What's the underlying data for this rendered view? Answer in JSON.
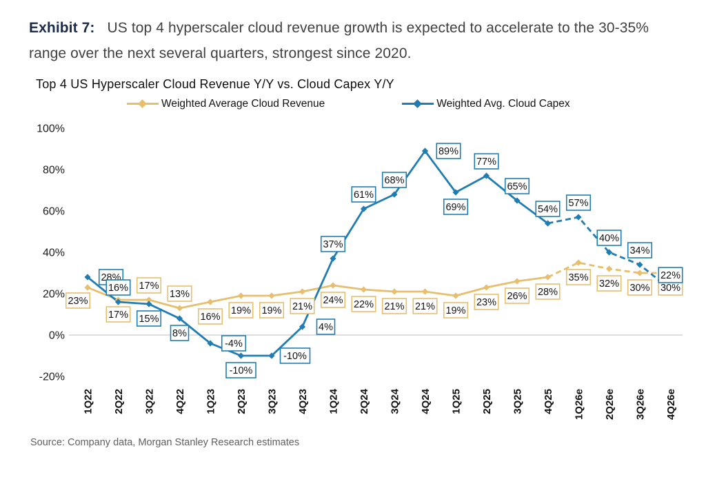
{
  "exhibit": {
    "label": "Exhibit 7:",
    "text": "US top 4 hyperscaler cloud revenue growth is expected to accelerate to the 30-35% range over the next several quarters, strongest since 2020."
  },
  "chart_data": {
    "type": "line",
    "title": "Top 4 US Hyperscaler Cloud Revenue Y/Y vs. Cloud Capex Y/Y",
    "xlabel": "",
    "ylabel": "",
    "categories": [
      "1Q22",
      "2Q22",
      "3Q22",
      "4Q22",
      "1Q23",
      "2Q23",
      "3Q23",
      "4Q23",
      "1Q24",
      "2Q24",
      "3Q24",
      "4Q24",
      "1Q25",
      "2Q25",
      "3Q25",
      "4Q25",
      "1Q26e",
      "2Q26e",
      "3Q26e",
      "4Q26e"
    ],
    "ylim": [
      -20,
      100
    ],
    "yticks": [
      100,
      80,
      60,
      40,
      20,
      0,
      -20
    ],
    "ytick_format": "percent",
    "grid": "single horizontal gridline at 0% only",
    "legend_position": "top",
    "estimates_note": "categories with e suffix are estimates, drawn dashed",
    "series": [
      {
        "name": "Weighted Average Cloud Revenue",
        "color": "#E6BE6E",
        "values": [
          23,
          17,
          17,
          13,
          16,
          19,
          19,
          21,
          24,
          22,
          21,
          21,
          19,
          23,
          26,
          28,
          35,
          32,
          30,
          30
        ],
        "dashed_from": "4Q25",
        "label_pos": [
          "below-left",
          "below",
          "above",
          "above",
          "below",
          "below",
          "below",
          "below",
          "below",
          "below",
          "below",
          "below",
          "below",
          "below",
          "below",
          "below",
          "below",
          "below",
          "below",
          "below"
        ]
      },
      {
        "name": "Weighted Avg. Cloud Capex",
        "color": "#1F7DB4",
        "values": [
          28,
          16,
          15,
          8,
          -4,
          -10,
          -10,
          4,
          37,
          61,
          68,
          89,
          69,
          77,
          65,
          54,
          57,
          40,
          34,
          22
        ],
        "dashed_from": "4Q25",
        "label_pos": [
          "right",
          "above",
          "below",
          "below",
          "right",
          "below",
          "right",
          "right",
          "above",
          "above",
          "above",
          "right",
          "below",
          "above",
          "above",
          "above",
          "above",
          "above",
          "above",
          "above"
        ]
      }
    ]
  },
  "source": "Source: Company data, Morgan Stanley Research estimates"
}
